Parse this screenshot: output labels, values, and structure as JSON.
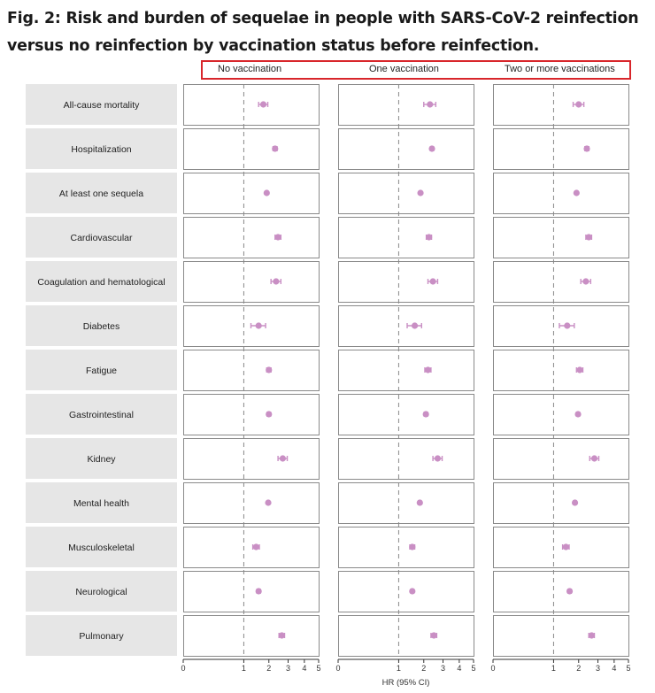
{
  "figure": {
    "title": "Fig. 2: Risk and burden of sequelae in people with SARS-CoV-2 reinfection versus no reinfection by vaccination status before reinfection."
  },
  "colors": {
    "marker": "#c98fc4",
    "label_bg": "#e6e6e6",
    "panel_border": "#8a8a8a",
    "reference_line": "#888888",
    "highlight_box": "#d8262b"
  },
  "chart_data": {
    "type": "scatter",
    "subtype": "forest-plot",
    "xlabel": "HR (95% CI)",
    "xlim": [
      0,
      5
    ],
    "x_scale": "square-root",
    "x_ticks": [
      0,
      1,
      2,
      3,
      4,
      5
    ],
    "reference_line": 1,
    "panels": [
      "No vaccination",
      "One vaccination",
      "Two or more vaccinations"
    ],
    "outcomes": [
      "All-cause mortality",
      "Hospitalization",
      "At least one sequela",
      "Cardiovascular",
      "Coagulation and hematological",
      "Diabetes",
      "Fatigue",
      "Gastrointestinal",
      "Kidney",
      "Mental health",
      "Musculoskeletal",
      "Neurological",
      "Pulmonary"
    ],
    "series": [
      {
        "name": "No vaccination",
        "hr": [
          1.75,
          2.3,
          1.9,
          2.45,
          2.35,
          1.55,
          2.0,
          2.0,
          2.7,
          1.97,
          1.45,
          1.55,
          2.65
        ],
        "lower": [
          1.55,
          2.2,
          1.87,
          2.3,
          2.1,
          1.25,
          1.9,
          1.92,
          2.45,
          1.92,
          1.32,
          1.48,
          2.5
        ],
        "upper": [
          1.95,
          2.4,
          1.93,
          2.6,
          2.6,
          1.85,
          2.1,
          2.08,
          2.95,
          2.02,
          1.58,
          1.62,
          2.8
        ]
      },
      {
        "name": "One vaccination",
        "hr": [
          2.3,
          2.4,
          1.85,
          2.25,
          2.45,
          1.6,
          2.2,
          2.1,
          2.7,
          1.82,
          1.5,
          1.5,
          2.5
        ],
        "lower": [
          2.0,
          2.32,
          1.82,
          2.12,
          2.2,
          1.3,
          2.05,
          2.02,
          2.45,
          1.76,
          1.4,
          1.44,
          2.35
        ],
        "upper": [
          2.6,
          2.48,
          1.88,
          2.38,
          2.7,
          1.9,
          2.35,
          2.18,
          2.95,
          1.88,
          1.6,
          1.56,
          2.65
        ]
      },
      {
        "name": "Two or more vaccinations",
        "hr": [
          2.0,
          2.4,
          1.9,
          2.5,
          2.35,
          1.5,
          2.05,
          1.97,
          2.8,
          1.83,
          1.45,
          1.6,
          2.65
        ],
        "lower": [
          1.75,
          2.3,
          1.87,
          2.35,
          2.1,
          1.2,
          1.9,
          1.9,
          2.55,
          1.77,
          1.32,
          1.53,
          2.5
        ],
        "upper": [
          2.25,
          2.5,
          1.93,
          2.65,
          2.6,
          1.8,
          2.2,
          2.04,
          3.05,
          1.89,
          1.58,
          1.67,
          2.8
        ]
      }
    ]
  }
}
